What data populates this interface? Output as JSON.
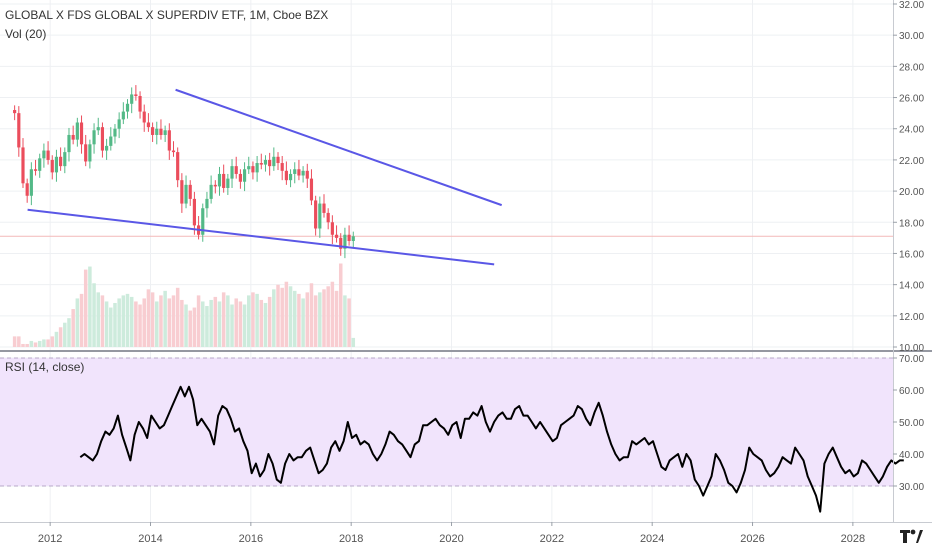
{
  "header": {
    "title": "GLOBAL X FDS GLOBAL X SUPERDIV ETF, 1M, Cboe BZX",
    "vol_label": "Vol (20)",
    "rsi_label": "RSI (14, close)"
  },
  "colors": {
    "up": "#53b987",
    "down": "#eb4d5c",
    "up_vol": "#cdebdc",
    "down_vol": "#f8cdd1",
    "trendline": "#5a57e6",
    "price_line": "#f4b9b9",
    "rsi_line": "#000000",
    "rsi_band": "#f1e4fc",
    "grid": "#eef0f3"
  },
  "chart_data": [
    {
      "type": "candlestick",
      "name": "price",
      "y_axis": {
        "range": [
          10,
          32
        ],
        "ticks": [
          "32.00",
          "30.00",
          "28.00",
          "26.00",
          "24.00",
          "22.00",
          "20.00",
          "18.00",
          "16.00",
          "14.00",
          "12.00",
          "10.00"
        ]
      },
      "x_axis": {
        "range": [
          2011.0,
          2028.8
        ],
        "ticks": [
          "2012",
          "2014",
          "2016",
          "2018",
          "2020",
          "2022",
          "2024",
          "2026",
          "2028"
        ]
      },
      "current_price": 17.1,
      "grid": true,
      "trendlines": [
        {
          "from": [
            2014.5,
            26.5
          ],
          "to": [
            2021.0,
            19.1
          ]
        },
        {
          "from": [
            2011.55,
            18.8
          ],
          "to": [
            2020.85,
            15.3
          ]
        }
      ],
      "closes": [
        25.0,
        22.8,
        20.5,
        19.7,
        21.4,
        21.3,
        22.1,
        22.6,
        22.0,
        21.2,
        22.2,
        21.6,
        22.5,
        23.6,
        23.3,
        24.4,
        23.0,
        21.9,
        23.0,
        23.9,
        24.1,
        22.6,
        22.9,
        23.5,
        24.0,
        24.6,
        25.1,
        25.6,
        26.2,
        26.1,
        25.1,
        24.4,
        24.1,
        23.6,
        24.0,
        23.6,
        23.9,
        22.6,
        22.5,
        20.7,
        19.2,
        20.4,
        19.5,
        17.8,
        17.2,
        18.9,
        19.5,
        20.4,
        20.3,
        21.1,
        20.2,
        20.8,
        21.6,
        21.1,
        20.6,
        21.4,
        21.6,
        21.2,
        21.8,
        21.7,
        22.0,
        21.6,
        22.2,
        21.8,
        21.3,
        20.7,
        21.1,
        21.4,
        21.0,
        21.3,
        20.8,
        19.4,
        17.6,
        19.2,
        18.6,
        18.0,
        17.2,
        17.0,
        16.3,
        17.2,
        16.8,
        17.1
      ],
      "volumes": [
        0.7,
        0.7,
        0.2,
        0.2,
        0.4,
        0.3,
        0.4,
        0.5,
        0.5,
        0.7,
        1.0,
        1.3,
        1.6,
        1.9,
        2.5,
        3.2,
        3.5,
        5.1,
        5.3,
        4.2,
        3.6,
        3.4,
        3.0,
        2.6,
        2.9,
        3.2,
        3.4,
        3.5,
        3.3,
        3.0,
        2.8,
        3.2,
        3.8,
        3.6,
        3.0,
        3.4,
        3.7,
        3.2,
        3.4,
        3.9,
        3.1,
        2.8,
        2.4,
        2.6,
        3.4,
        3.0,
        2.7,
        3.1,
        3.3,
        3.0,
        3.6,
        3.4,
        2.8,
        3.2,
        3.0,
        2.8,
        3.4,
        3.6,
        3.5,
        3.1,
        2.9,
        3.3,
        3.8,
        4.1,
        3.9,
        4.3,
        4.0,
        3.7,
        3.5,
        3.2,
        3.6,
        4.2,
        3.4,
        3.6,
        3.8,
        4.0,
        4.3,
        3.7,
        5.5,
        3.4,
        3.2,
        0.6
      ],
      "volume_max": 5.6
    },
    {
      "type": "line",
      "name": "RSI (14, close)",
      "y_axis": {
        "range": [
          20,
          70
        ],
        "ticks": [
          "70.00",
          "60.00",
          "50.00",
          "40.00",
          "30.00"
        ],
        "band": [
          30,
          70
        ]
      },
      "x_start": 2012.6,
      "x_step": 0.08333,
      "values": [
        39,
        40,
        39,
        38,
        40,
        44,
        47,
        46,
        48,
        52,
        46,
        42,
        38,
        46,
        50,
        48,
        45,
        52,
        50,
        48,
        49,
        52,
        55,
        58,
        61,
        58,
        61,
        57,
        49,
        51,
        49,
        47,
        43,
        52,
        55,
        54,
        51,
        47,
        48,
        44,
        41,
        34,
        37,
        33,
        35,
        40,
        37,
        32,
        31,
        37,
        40,
        38,
        39,
        39,
        41,
        42,
        38,
        34,
        35,
        37,
        42,
        44,
        41,
        44,
        50,
        45,
        46,
        43,
        44,
        43,
        40,
        38,
        40,
        43,
        47,
        46,
        44,
        43,
        41,
        39,
        43,
        44,
        49,
        49,
        50,
        51,
        49,
        48,
        46,
        49,
        50,
        45,
        51,
        51,
        53,
        52,
        55,
        50,
        47,
        50,
        52,
        53,
        51,
        51,
        54,
        55,
        52,
        52,
        50,
        48,
        50,
        48,
        46,
        44,
        45,
        49,
        50,
        51,
        52,
        55,
        54,
        51,
        49,
        53,
        56,
        52,
        47,
        43,
        40,
        38,
        39,
        39,
        44,
        43,
        44,
        45,
        43,
        44,
        40,
        36,
        35,
        38,
        39,
        40,
        36,
        40,
        38,
        32,
        30,
        27,
        30,
        33,
        40,
        38,
        35,
        31,
        30,
        28,
        31,
        35,
        42,
        40,
        39,
        38,
        35,
        33,
        34,
        36,
        39,
        38,
        37,
        42,
        40,
        38,
        33,
        30,
        27,
        22,
        37,
        40,
        42,
        39,
        36,
        34,
        35,
        33,
        34,
        38,
        37,
        35,
        33,
        31,
        33,
        36,
        38,
        37,
        38,
        38
      ]
    }
  ]
}
